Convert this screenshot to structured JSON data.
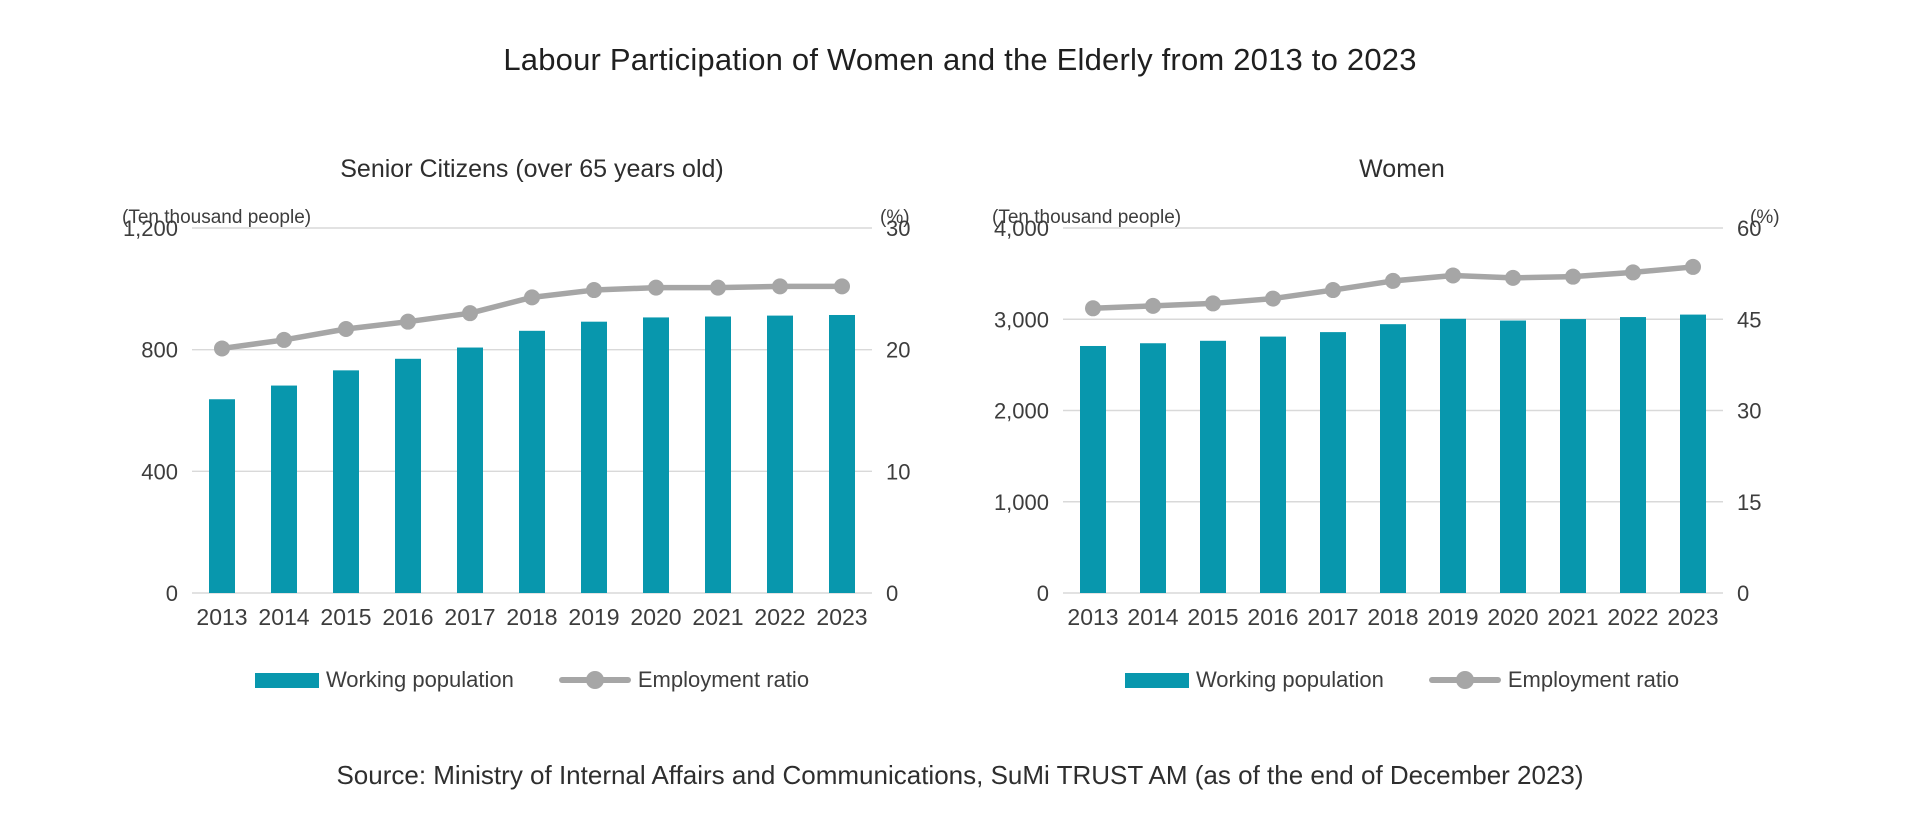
{
  "page": {
    "title": "Labour Participation of Women and the Elderly from 2013 to 2023",
    "source": "Source: Ministry of Internal Affairs and Communications, SuMi TRUST AM (as of the end of December 2023)"
  },
  "colors": {
    "bar": "#0897AD",
    "line": "#A6A6A6",
    "grid": "#D9D9D9",
    "text": "#3D3D3D"
  },
  "legend": {
    "bar_label": "Working population",
    "line_label": "Employment ratio"
  },
  "chart_data": [
    {
      "type": "bar+line",
      "title": "Senior Citizens (over 65 years old)",
      "categories": [
        "2013",
        "2014",
        "2015",
        "2016",
        "2017",
        "2018",
        "2019",
        "2020",
        "2021",
        "2022",
        "2023"
      ],
      "left_axis": {
        "label": "(Ten thousand people)",
        "ticks": [
          0,
          400,
          800,
          1200
        ],
        "max": 1200
      },
      "right_axis": {
        "label": "(%)",
        "ticks": [
          0,
          10,
          20,
          30
        ],
        "max": 30
      },
      "series": [
        {
          "name": "Working population",
          "type": "bar",
          "axis": "left",
          "values": [
            637,
            682,
            732,
            770,
            807,
            862,
            892,
            906,
            909,
            912,
            914
          ]
        },
        {
          "name": "Employment ratio",
          "type": "line",
          "axis": "right",
          "values": [
            20.1,
            20.8,
            21.7,
            22.3,
            23.0,
            24.3,
            24.9,
            25.1,
            25.1,
            25.2,
            25.2
          ]
        }
      ],
      "grid": true,
      "legend_position": "bottom"
    },
    {
      "type": "bar+line",
      "title": "Women",
      "categories": [
        "2013",
        "2014",
        "2015",
        "2016",
        "2017",
        "2018",
        "2019",
        "2020",
        "2021",
        "2022",
        "2023"
      ],
      "left_axis": {
        "label": "(Ten thousand people)",
        "ticks": [
          0,
          1000,
          2000,
          3000,
          4000
        ],
        "max": 4000
      },
      "right_axis": {
        "label": "(%)",
        "ticks": [
          0,
          15,
          30,
          45,
          60
        ],
        "max": 60
      },
      "series": [
        {
          "name": "Working population",
          "type": "bar",
          "axis": "left",
          "values": [
            2707,
            2737,
            2764,
            2810,
            2859,
            2946,
            3005,
            2986,
            3002,
            3024,
            3051
          ]
        },
        {
          "name": "Employment ratio",
          "type": "line",
          "axis": "right",
          "values": [
            46.8,
            47.2,
            47.6,
            48.4,
            49.8,
            51.3,
            52.2,
            51.8,
            52.0,
            52.7,
            53.6
          ]
        }
      ],
      "grid": true,
      "legend_position": "bottom"
    }
  ]
}
